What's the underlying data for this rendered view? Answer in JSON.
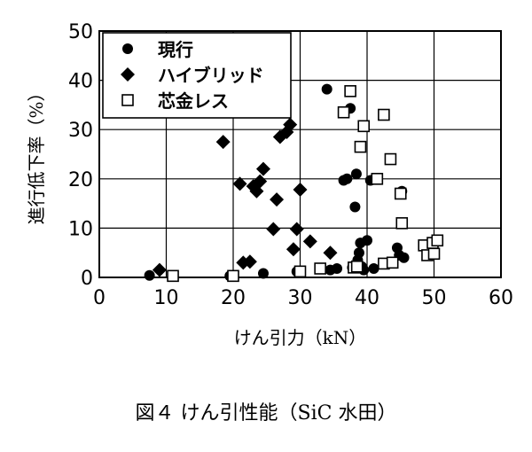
{
  "caption": "図４ けん引性能（SiC 水田）",
  "chart_data": {
    "type": "scatter",
    "title": "",
    "xlabel": "けん引力（kN）",
    "ylabel": "進行低下率（%）",
    "xlim": [
      0,
      60
    ],
    "ylim": [
      0,
      50
    ],
    "xticks": [
      "0",
      "10",
      "20",
      "30",
      "40",
      "50",
      "60"
    ],
    "yticks": [
      "0",
      "10",
      "20",
      "30",
      "40",
      "50"
    ],
    "grid": true,
    "legend_position": "top-left",
    "series": [
      {
        "name": "現行",
        "marker": "circle-filled",
        "points": [
          [
            7.5,
            0.4
          ],
          [
            19.5,
            0.3
          ],
          [
            24.5,
            0.8
          ],
          [
            29.5,
            1.2
          ],
          [
            34.0,
            38.2
          ],
          [
            34.5,
            1.5
          ],
          [
            35.5,
            1.8
          ],
          [
            36.5,
            19.7
          ],
          [
            37.0,
            20.0
          ],
          [
            37.5,
            34.3
          ],
          [
            37.8,
            2.0
          ],
          [
            38.2,
            14.3
          ],
          [
            38.4,
            21.0
          ],
          [
            38.6,
            3.5
          ],
          [
            38.8,
            5.0
          ],
          [
            39.0,
            7.0
          ],
          [
            39.2,
            2.2
          ],
          [
            39.5,
            1.5
          ],
          [
            40.0,
            7.5
          ],
          [
            40.5,
            19.7
          ],
          [
            41.0,
            1.8
          ],
          [
            44.5,
            6.0
          ],
          [
            44.8,
            4.5
          ],
          [
            45.2,
            17.5
          ],
          [
            45.5,
            4.0
          ]
        ]
      },
      {
        "name": "ハイブリッド",
        "marker": "diamond-filled",
        "points": [
          [
            9.0,
            1.5
          ],
          [
            18.5,
            27.5
          ],
          [
            21.0,
            19.0
          ],
          [
            21.5,
            3.0
          ],
          [
            22.5,
            3.2
          ],
          [
            23.0,
            18.5
          ],
          [
            23.5,
            17.5
          ],
          [
            24.0,
            19.5
          ],
          [
            24.5,
            22.0
          ],
          [
            26.0,
            9.8
          ],
          [
            26.5,
            15.8
          ],
          [
            27.0,
            28.5
          ],
          [
            28.0,
            29.5
          ],
          [
            28.5,
            31.0
          ],
          [
            29.0,
            5.7
          ],
          [
            29.5,
            9.8
          ],
          [
            30.0,
            17.8
          ],
          [
            31.5,
            7.3
          ],
          [
            34.5,
            5.0
          ]
        ]
      },
      {
        "name": "芯金レス",
        "marker": "square-open",
        "points": [
          [
            11.0,
            0.3
          ],
          [
            20.0,
            0.3
          ],
          [
            30.0,
            1.2
          ],
          [
            33.0,
            1.8
          ],
          [
            36.5,
            33.5
          ],
          [
            37.5,
            37.8
          ],
          [
            38.0,
            2.0
          ],
          [
            38.5,
            2.2
          ],
          [
            39.0,
            26.5
          ],
          [
            39.5,
            30.7
          ],
          [
            41.5,
            20.0
          ],
          [
            42.5,
            2.8
          ],
          [
            42.5,
            33.0
          ],
          [
            43.5,
            24.0
          ],
          [
            43.8,
            3.0
          ],
          [
            45.0,
            17.0
          ],
          [
            45.2,
            11.0
          ],
          [
            48.5,
            6.5
          ],
          [
            49.0,
            4.5
          ],
          [
            49.8,
            7.0
          ],
          [
            50.0,
            4.8
          ],
          [
            50.5,
            7.5
          ]
        ]
      }
    ]
  }
}
